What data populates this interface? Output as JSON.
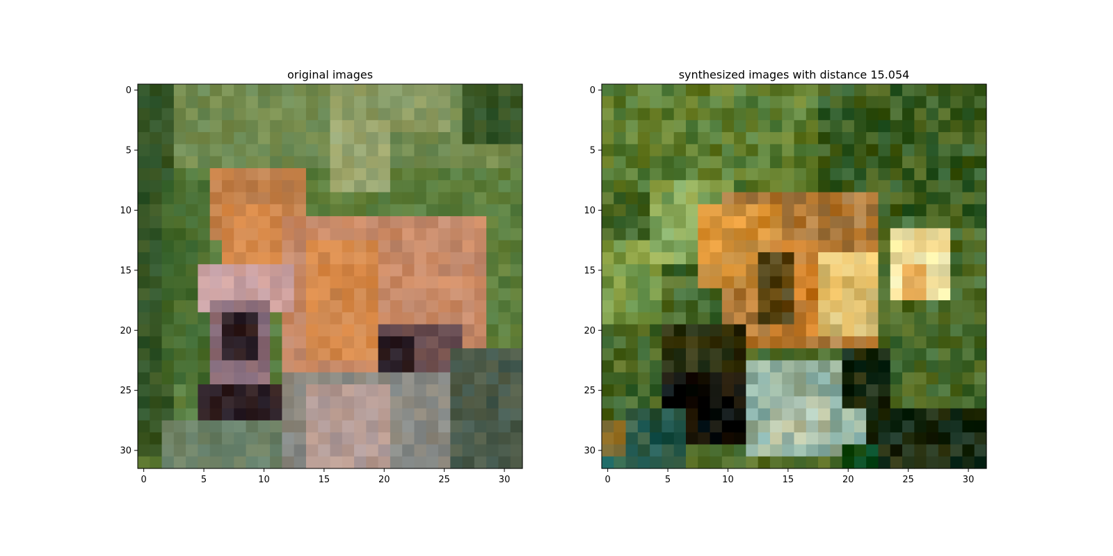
{
  "chart_data": [
    {
      "type": "heatmap",
      "title": "original images",
      "xlabel": "",
      "ylabel": "",
      "xlim": [
        -0.5,
        31.5
      ],
      "ylim": [
        31.5,
        -0.5
      ],
      "x_ticks": [
        0,
        5,
        10,
        15,
        20,
        25,
        30
      ],
      "y_ticks": [
        0,
        5,
        10,
        15,
        20,
        25,
        30
      ],
      "grid": false,
      "image_size": [
        32,
        32
      ],
      "palette": [
        "#3f6a2a",
        "#5d7f3d",
        "#728c52",
        "#8a9a62",
        "#9aa56e",
        "#355526",
        "#466b2e",
        "#c2804a",
        "#d4884a",
        "#c88a68",
        "#caa0a0",
        "#8a6c78",
        "#2e1e22",
        "#6a4a4a",
        "#8a8a84",
        "#6a8066",
        "#4a5a4a",
        "#b39a94"
      ],
      "regions": [
        {
          "rows": [
            0,
            31
          ],
          "cols": [
            0,
            31
          ],
          "tone": 1
        },
        {
          "rows": [
            0,
            6
          ],
          "cols": [
            0,
            31
          ],
          "tone": 2
        },
        {
          "rows": [
            0,
            3
          ],
          "cols": [
            16,
            25
          ],
          "tone": 3
        },
        {
          "rows": [
            3,
            8
          ],
          "cols": [
            16,
            20
          ],
          "tone": 4
        },
        {
          "rows": [
            0,
            30
          ],
          "cols": [
            0,
            2
          ],
          "tone": 5
        },
        {
          "rows": [
            0,
            4
          ],
          "cols": [
            27,
            31
          ],
          "tone": 5
        },
        {
          "rows": [
            8,
            24
          ],
          "cols": [
            2,
            5
          ],
          "tone": 6
        },
        {
          "rows": [
            7,
            12
          ],
          "cols": [
            6,
            13
          ],
          "tone": 7
        },
        {
          "rows": [
            10,
            15
          ],
          "cols": [
            7,
            12
          ],
          "tone": 8
        },
        {
          "rows": [
            11,
            23
          ],
          "cols": [
            12,
            28
          ],
          "tone": 9
        },
        {
          "rows": [
            13,
            22
          ],
          "cols": [
            14,
            19
          ],
          "tone": 8
        },
        {
          "rows": [
            15,
            18
          ],
          "cols": [
            5,
            12
          ],
          "tone": 10
        },
        {
          "rows": [
            18,
            25
          ],
          "cols": [
            6,
            10
          ],
          "tone": 11
        },
        {
          "rows": [
            19,
            22
          ],
          "cols": [
            7,
            9
          ],
          "tone": 12
        },
        {
          "rows": [
            20,
            24
          ],
          "cols": [
            20,
            26
          ],
          "tone": 13
        },
        {
          "rows": [
            21,
            23
          ],
          "cols": [
            20,
            22
          ],
          "tone": 12
        },
        {
          "rows": [
            24,
            31
          ],
          "cols": [
            12,
            31
          ],
          "tone": 14
        },
        {
          "rows": [
            25,
            31
          ],
          "cols": [
            14,
            20
          ],
          "tone": 17
        },
        {
          "rows": [
            25,
            28
          ],
          "cols": [
            5,
            11
          ],
          "tone": 12
        },
        {
          "rows": [
            28,
            31
          ],
          "cols": [
            2,
            11
          ],
          "tone": 15
        },
        {
          "rows": [
            22,
            31
          ],
          "cols": [
            26,
            31
          ],
          "tone": 16
        }
      ]
    },
    {
      "type": "heatmap",
      "title": "synthesized images with distance 15.054",
      "xlabel": "",
      "ylabel": "",
      "xlim": [
        -0.5,
        31.5
      ],
      "ylim": [
        31.5,
        -0.5
      ],
      "x_ticks": [
        0,
        5,
        10,
        15,
        20,
        25,
        30
      ],
      "y_ticks": [
        0,
        5,
        10,
        15,
        20,
        25,
        30
      ],
      "grid": false,
      "image_size": [
        32,
        32
      ],
      "palette": [
        "#4a6a2a",
        "#5e7e32",
        "#3c5e22",
        "#7a9a48",
        "#8aa858",
        "#b07a3a",
        "#d0903a",
        "#c27a2a",
        "#e0c070",
        "#f0e0a0",
        "#e6b060",
        "#5a4410",
        "#2a3010",
        "#0a0c06",
        "#90b0a0",
        "#b0c0a8",
        "#1a2a10",
        "#0a4a1a",
        "#2a5a4a",
        "#3a7a6a",
        "#9a8040"
      ],
      "regions": [
        {
          "rows": [
            0,
            31
          ],
          "cols": [
            0,
            31
          ],
          "tone": 0
        },
        {
          "rows": [
            0,
            8
          ],
          "cols": [
            0,
            31
          ],
          "tone": 1
        },
        {
          "rows": [
            0,
            10
          ],
          "cols": [
            18,
            31
          ],
          "tone": 2
        },
        {
          "rows": [
            13,
            19
          ],
          "cols": [
            0,
            4
          ],
          "tone": 3
        },
        {
          "rows": [
            8,
            14
          ],
          "cols": [
            4,
            10
          ],
          "tone": 4
        },
        {
          "rows": [
            9,
            21
          ],
          "cols": [
            10,
            22
          ],
          "tone": 5
        },
        {
          "rows": [
            10,
            16
          ],
          "cols": [
            8,
            14
          ],
          "tone": 6
        },
        {
          "rows": [
            13,
            20
          ],
          "cols": [
            14,
            18
          ],
          "tone": 7
        },
        {
          "rows": [
            14,
            20
          ],
          "cols": [
            18,
            22
          ],
          "tone": 8
        },
        {
          "rows": [
            12,
            17
          ],
          "cols": [
            24,
            28
          ],
          "tone": 9
        },
        {
          "rows": [
            15,
            17
          ],
          "cols": [
            25,
            26
          ],
          "tone": 10
        },
        {
          "rows": [
            14,
            19
          ],
          "cols": [
            13,
            15
          ],
          "tone": 11
        },
        {
          "rows": [
            20,
            24
          ],
          "cols": [
            5,
            11
          ],
          "tone": 12
        },
        {
          "rows": [
            24,
            29
          ],
          "cols": [
            5,
            11
          ],
          "tone": 13
        },
        {
          "rows": [
            25,
            28
          ],
          "cols": [
            7,
            10
          ],
          "tone": 13
        },
        {
          "rows": [
            23,
            30
          ],
          "cols": [
            12,
            21
          ],
          "tone": 14
        },
        {
          "rows": [
            26,
            29
          ],
          "cols": [
            14,
            18
          ],
          "tone": 15
        },
        {
          "rows": [
            22,
            26
          ],
          "cols": [
            20,
            23
          ],
          "tone": 16
        },
        {
          "rows": [
            27,
            31
          ],
          "cols": [
            22,
            31
          ],
          "tone": 16
        },
        {
          "rows": [
            30,
            31
          ],
          "cols": [
            20,
            22
          ],
          "tone": 17
        },
        {
          "rows": [
            30,
            31
          ],
          "cols": [
            0,
            3
          ],
          "tone": 19
        },
        {
          "rows": [
            27,
            31
          ],
          "cols": [
            2,
            6
          ],
          "tone": 18
        },
        {
          "rows": [
            28,
            30
          ],
          "cols": [
            0,
            1
          ],
          "tone": 20
        }
      ]
    }
  ]
}
